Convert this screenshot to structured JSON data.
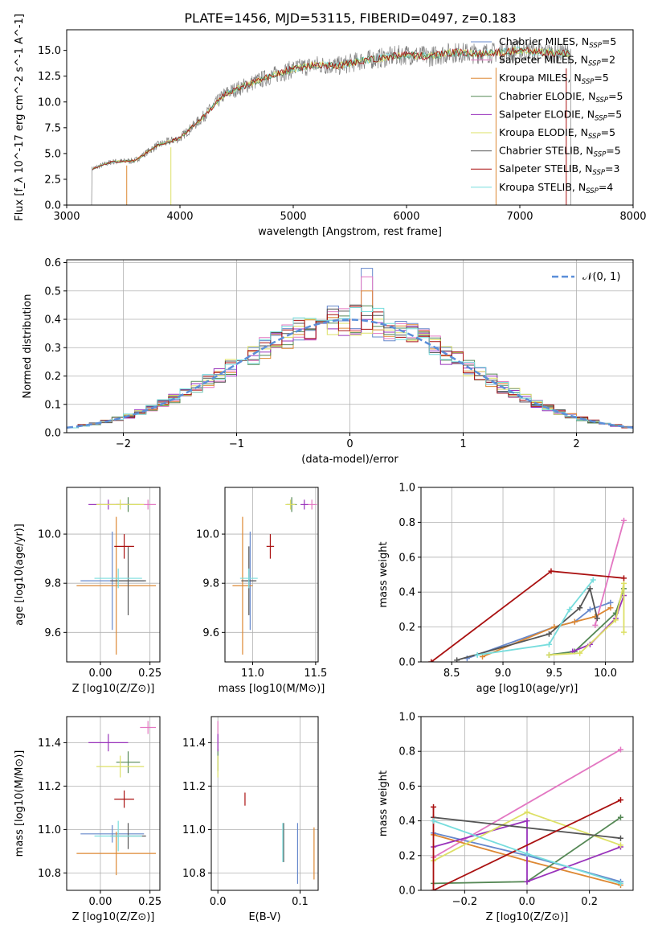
{
  "title": "PLATE=1456, MJD=53115, FIBERID=0497, z=0.183",
  "colors": {
    "chabrier_miles": "#6688cc",
    "salpeter_miles": "#e377c2",
    "kroupa_miles": "#dd8833",
    "chabrier_elodie": "#558855",
    "salpeter_elodie": "#9933bb",
    "kroupa_elodie": "#dde066",
    "chabrier_stelib": "#555555",
    "salpeter_stelib": "#aa1111",
    "kroupa_stelib": "#77dddd",
    "data": "#808080",
    "gauss": "#5b8fd9"
  },
  "chart_data": [
    {
      "id": "spectrum",
      "type": "line",
      "xlabel": "wavelength [Angstrom, rest frame]",
      "ylabel": "Flux [f_λ 10^-17 erg cm^-2 s^-1 A^-1]",
      "xlim": [
        3000,
        8000
      ],
      "ylim": [
        0,
        17
      ],
      "xticks": [
        3000,
        4000,
        5000,
        6000,
        7000,
        8000
      ],
      "yticks": [
        0.0,
        2.5,
        5.0,
        7.5,
        10.0,
        12.5,
        15.0
      ],
      "x_range_data": [
        3220,
        7450
      ],
      "spectrum_envelope": {
        "x": [
          3220,
          3400,
          3600,
          3800,
          4000,
          4200,
          4400,
          4600,
          4800,
          5000,
          5200,
          5400,
          5600,
          5800,
          6000,
          6200,
          6400,
          6600,
          6800,
          7000,
          7200,
          7450
        ],
        "y": [
          3.5,
          4.2,
          4.3,
          5.8,
          6.5,
          8.5,
          10.8,
          11.7,
          12.5,
          13.2,
          13.6,
          13.5,
          14.0,
          14.3,
          14.6,
          14.4,
          14.8,
          14.7,
          14.8,
          15.0,
          14.8,
          14.7
        ]
      },
      "legend_position": "upper right",
      "legend": [
        {
          "label": "Chabrier MILES",
          "nssp": "5",
          "color_key": "chabrier_miles"
        },
        {
          "label": "Salpeter MILES",
          "nssp": "2",
          "color_key": "salpeter_miles"
        },
        {
          "label": "Kroupa MILES",
          "nssp": "5",
          "color_key": "kroupa_miles"
        },
        {
          "label": "Chabrier ELODIE",
          "nssp": "5",
          "color_key": "chabrier_elodie"
        },
        {
          "label": "Salpeter ELODIE",
          "nssp": "5",
          "color_key": "salpeter_elodie"
        },
        {
          "label": "Kroupa ELODIE",
          "nssp": "5",
          "color_key": "kroupa_elodie"
        },
        {
          "label": "Chabrier STELIB",
          "nssp": "5",
          "color_key": "chabrier_stelib"
        },
        {
          "label": "Salpeter STELIB",
          "nssp": "3",
          "color_key": "salpeter_stelib"
        },
        {
          "label": "Kroupa STELIB",
          "nssp": "4",
          "color_key": "kroupa_stelib"
        }
      ]
    },
    {
      "id": "residuals",
      "type": "histogram",
      "xlabel": "(data-model)/error",
      "ylabel": "Normed distribution",
      "xlim": [
        -2.5,
        2.5
      ],
      "ylim": [
        0,
        0.61
      ],
      "xticks": [
        -2,
        -1,
        0,
        1,
        2
      ],
      "yticks": [
        0.0,
        0.1,
        0.2,
        0.3,
        0.4,
        0.5,
        0.6
      ],
      "bin_width": 0.1,
      "gauss_label": "𝒩(0, 1)",
      "peak_bins": [
        {
          "x": 0.15,
          "values": [
            0.58,
            0.55,
            0.5
          ]
        }
      ],
      "legend_position": "upper right"
    },
    {
      "id": "age_vs_Z",
      "type": "errorbar",
      "xlabel": "Z [log10(Z/Z⊙)]",
      "ylabel": "age [log10(age/yr)]",
      "xlim": [
        -0.17,
        0.3
      ],
      "ylim": [
        9.48,
        10.19
      ],
      "xticks": [
        0.0,
        0.25
      ],
      "yticks": [
        9.6,
        9.8,
        10.0
      ],
      "points": [
        {
          "k": "chabrier_miles",
          "x": 0.06,
          "y": 9.81,
          "xe": 0.16,
          "ye": 0.2
        },
        {
          "k": "salpeter_miles",
          "x": 0.24,
          "y": 10.12,
          "xe": 0.04,
          "ye": 0.02
        },
        {
          "k": "kroupa_miles",
          "x": 0.08,
          "y": 9.79,
          "xe": 0.2,
          "ye": 0.28
        },
        {
          "k": "chabrier_elodie",
          "x": 0.14,
          "y": 10.12,
          "xe": 0.06,
          "ye": 0.03
        },
        {
          "k": "salpeter_elodie",
          "x": 0.04,
          "y": 10.12,
          "xe": 0.1,
          "ye": 0.02
        },
        {
          "k": "kroupa_elodie",
          "x": 0.1,
          "y": 10.12,
          "xe": 0.12,
          "ye": 0.02
        },
        {
          "k": "chabrier_stelib",
          "x": 0.14,
          "y": 9.81,
          "xe": 0.09,
          "ye": 0.14
        },
        {
          "k": "salpeter_stelib",
          "x": 0.12,
          "y": 9.95,
          "xe": 0.05,
          "ye": 0.05
        },
        {
          "k": "kroupa_stelib",
          "x": 0.09,
          "y": 9.82,
          "xe": 0.12,
          "ye": 0.04
        }
      ]
    },
    {
      "id": "age_vs_mass",
      "type": "errorbar",
      "xlabel": "mass [log10(M/M⊙)]",
      "ylabel": "",
      "xlim": [
        10.78,
        11.52
      ],
      "ylim": [
        9.48,
        10.19
      ],
      "xticks": [
        11.0,
        11.5
      ],
      "yticks": [
        9.6,
        9.8,
        10.0
      ],
      "points": [
        {
          "k": "chabrier_miles",
          "x": 10.98,
          "y": 9.81,
          "xe": 0.04,
          "ye": 0.2
        },
        {
          "k": "salpeter_miles",
          "x": 11.47,
          "y": 10.12,
          "xe": 0.04,
          "ye": 0.02
        },
        {
          "k": "kroupa_miles",
          "x": 10.92,
          "y": 9.79,
          "xe": 0.08,
          "ye": 0.28
        },
        {
          "k": "chabrier_elodie",
          "x": 11.31,
          "y": 10.12,
          "xe": 0.04,
          "ye": 0.03
        },
        {
          "k": "salpeter_elodie",
          "x": 11.41,
          "y": 10.12,
          "xe": 0.03,
          "ye": 0.02
        },
        {
          "k": "kroupa_elodie",
          "x": 11.3,
          "y": 10.12,
          "xe": 0.04,
          "ye": 0.02
        },
        {
          "k": "chabrier_stelib",
          "x": 10.97,
          "y": 9.81,
          "xe": 0.06,
          "ye": 0.14
        },
        {
          "k": "salpeter_stelib",
          "x": 11.14,
          "y": 9.95,
          "xe": 0.03,
          "ye": 0.05
        },
        {
          "k": "kroupa_stelib",
          "x": 10.97,
          "y": 9.82,
          "xe": 0.07,
          "ye": 0.04
        }
      ]
    },
    {
      "id": "weight_vs_age",
      "type": "line",
      "xlabel": "age [log10(age/yr)]",
      "ylabel": "mass weight",
      "xlim": [
        8.2,
        10.27
      ],
      "ylim": [
        0,
        1
      ],
      "xticks": [
        8.5,
        9.0,
        9.5,
        10.0
      ],
      "yticks": [
        0.0,
        0.2,
        0.4,
        0.6,
        0.8,
        1.0
      ],
      "series": [
        {
          "k": "chabrier_miles",
          "x": [
            8.65,
            9.5,
            9.7,
            9.85,
            10.05
          ],
          "y": [
            0.02,
            0.2,
            0.23,
            0.3,
            0.34
          ]
        },
        {
          "k": "salpeter_miles",
          "x": [
            9.9,
            10.18
          ],
          "y": [
            0.21,
            0.81
          ]
        },
        {
          "k": "kroupa_miles",
          "x": [
            8.8,
            9.5,
            9.7,
            9.9,
            10.05
          ],
          "y": [
            0.03,
            0.2,
            0.23,
            0.26,
            0.31
          ]
        },
        {
          "k": "chabrier_elodie",
          "x": [
            9.45,
            9.7,
            10.1,
            10.18
          ],
          "y": [
            0.04,
            0.06,
            0.28,
            0.42
          ]
        },
        {
          "k": "salpeter_elodie",
          "x": [
            9.68,
            9.85,
            10.1,
            10.18
          ],
          "y": [
            0.06,
            0.1,
            0.25,
            0.38
          ]
        },
        {
          "k": "kroupa_elodie",
          "x": [
            9.45,
            9.75,
            10.1,
            10.18,
            10.18
          ],
          "y": [
            0.04,
            0.05,
            0.24,
            0.45,
            0.17
          ]
        },
        {
          "k": "chabrier_stelib",
          "x": [
            8.55,
            9.45,
            9.75,
            9.85,
            9.92
          ],
          "y": [
            0.01,
            0.16,
            0.31,
            0.42,
            0.25
          ]
        },
        {
          "k": "salpeter_stelib",
          "x": [
            8.3,
            9.47,
            10.18
          ],
          "y": [
            0.0,
            0.52,
            0.48
          ]
        },
        {
          "k": "kroupa_stelib",
          "x": [
            8.75,
            9.45,
            9.65,
            9.88
          ],
          "y": [
            0.04,
            0.1,
            0.3,
            0.47
          ]
        }
      ]
    },
    {
      "id": "mass_vs_Z",
      "type": "errorbar",
      "xlabel": "Z [log10(Z/Z⊙)]",
      "ylabel": "mass [log10(M/M⊙)]",
      "xlim": [
        -0.17,
        0.3
      ],
      "ylim": [
        10.72,
        11.52
      ],
      "xticks": [
        0.0,
        0.25
      ],
      "yticks": [
        10.8,
        11.0,
        11.2,
        11.4
      ],
      "points": [
        {
          "k": "chabrier_miles",
          "x": 0.06,
          "y": 10.98,
          "xe": 0.16,
          "ye": 0.04
        },
        {
          "k": "salpeter_miles",
          "x": 0.24,
          "y": 11.47,
          "xe": 0.04,
          "ye": 0.03
        },
        {
          "k": "kroupa_miles",
          "x": 0.08,
          "y": 10.89,
          "xe": 0.2,
          "ye": 0.1
        },
        {
          "k": "chabrier_elodie",
          "x": 0.14,
          "y": 11.31,
          "xe": 0.06,
          "ye": 0.05
        },
        {
          "k": "salpeter_elodie",
          "x": 0.04,
          "y": 11.4,
          "xe": 0.1,
          "ye": 0.04
        },
        {
          "k": "kroupa_elodie",
          "x": 0.1,
          "y": 11.29,
          "xe": 0.12,
          "ye": 0.05
        },
        {
          "k": "chabrier_stelib",
          "x": 0.14,
          "y": 10.97,
          "xe": 0.09,
          "ye": 0.06
        },
        {
          "k": "salpeter_stelib",
          "x": 0.12,
          "y": 11.14,
          "xe": 0.05,
          "ye": 0.04
        },
        {
          "k": "kroupa_stelib",
          "x": 0.09,
          "y": 10.97,
          "xe": 0.12,
          "ye": 0.07
        }
      ]
    },
    {
      "id": "mass_vs_ebv",
      "type": "errorbar",
      "xlabel": "E(B-V)",
      "ylabel": "",
      "xlim": [
        -0.008,
        0.122
      ],
      "ylim": [
        10.72,
        11.52
      ],
      "xticks": [
        0.0,
        0.1
      ],
      "yticks": [
        10.8,
        11.0,
        11.2,
        11.4
      ],
      "points": [
        {
          "k": "chabrier_miles",
          "x": 0.097,
          "y": 10.89,
          "xe": 0.0,
          "ye": 0.14
        },
        {
          "k": "salpeter_miles",
          "x": 0.0,
          "y": 11.43,
          "xe": 0.0,
          "ye": 0.07
        },
        {
          "k": "kroupa_miles",
          "x": 0.117,
          "y": 10.89,
          "xe": 0.0,
          "ye": 0.12
        },
        {
          "k": "chabrier_elodie",
          "x": 0.0,
          "y": 11.32,
          "xe": 0.0,
          "ye": 0.05
        },
        {
          "k": "salpeter_elodie",
          "x": 0.0,
          "y": 11.4,
          "xe": 0.0,
          "ye": 0.04
        },
        {
          "k": "kroupa_elodie",
          "x": 0.0,
          "y": 11.29,
          "xe": 0.0,
          "ye": 0.05
        },
        {
          "k": "chabrier_stelib",
          "x": 0.08,
          "y": 10.94,
          "xe": 0.0,
          "ye": 0.09
        },
        {
          "k": "salpeter_stelib",
          "x": 0.033,
          "y": 11.14,
          "xe": 0.0,
          "ye": 0.03
        },
        {
          "k": "kroupa_stelib",
          "x": 0.079,
          "y": 10.94,
          "xe": 0.0,
          "ye": 0.09
        }
      ]
    },
    {
      "id": "weight_vs_Z",
      "type": "line",
      "xlabel": "Z [log10(Z/Z⊙)]",
      "ylabel": "mass weight",
      "xlim": [
        -0.34,
        0.34
      ],
      "ylim": [
        0,
        1
      ],
      "xticks": [
        -0.2,
        0.0,
        0.2
      ],
      "yticks": [
        0.0,
        0.2,
        0.4,
        0.6,
        0.8,
        1.0
      ],
      "series": [
        {
          "k": "chabrier_miles",
          "x": [
            -0.3,
            0.0,
            0.3
          ],
          "y": [
            0.33,
            0.2,
            0.05
          ]
        },
        {
          "k": "salpeter_miles",
          "x": [
            -0.3,
            0.3
          ],
          "y": [
            0.19,
            0.81
          ]
        },
        {
          "k": "kroupa_miles",
          "x": [
            -0.3,
            0.0,
            0.3
          ],
          "y": [
            0.32,
            0.17,
            0.03
          ]
        },
        {
          "k": "chabrier_elodie",
          "x": [
            -0.3,
            0.0,
            0.3
          ],
          "y": [
            0.04,
            0.05,
            0.42
          ]
        },
        {
          "k": "salpeter_elodie",
          "x": [
            -0.3,
            0.0,
            0.0,
            0.3
          ],
          "y": [
            0.25,
            0.4,
            0.05,
            0.25
          ]
        },
        {
          "k": "kroupa_elodie",
          "x": [
            -0.3,
            0.0,
            0.3
          ],
          "y": [
            0.17,
            0.45,
            0.26
          ]
        },
        {
          "k": "chabrier_stelib",
          "x": [
            -0.3,
            0.3
          ],
          "y": [
            0.42,
            0.3
          ]
        },
        {
          "k": "salpeter_stelib",
          "x": [
            -0.3,
            -0.3,
            0.3
          ],
          "y": [
            0.48,
            0.0,
            0.52
          ]
        },
        {
          "k": "kroupa_stelib",
          "x": [
            -0.3,
            0.0,
            0.3
          ],
          "y": [
            0.4,
            0.21,
            0.04
          ]
        }
      ]
    }
  ]
}
